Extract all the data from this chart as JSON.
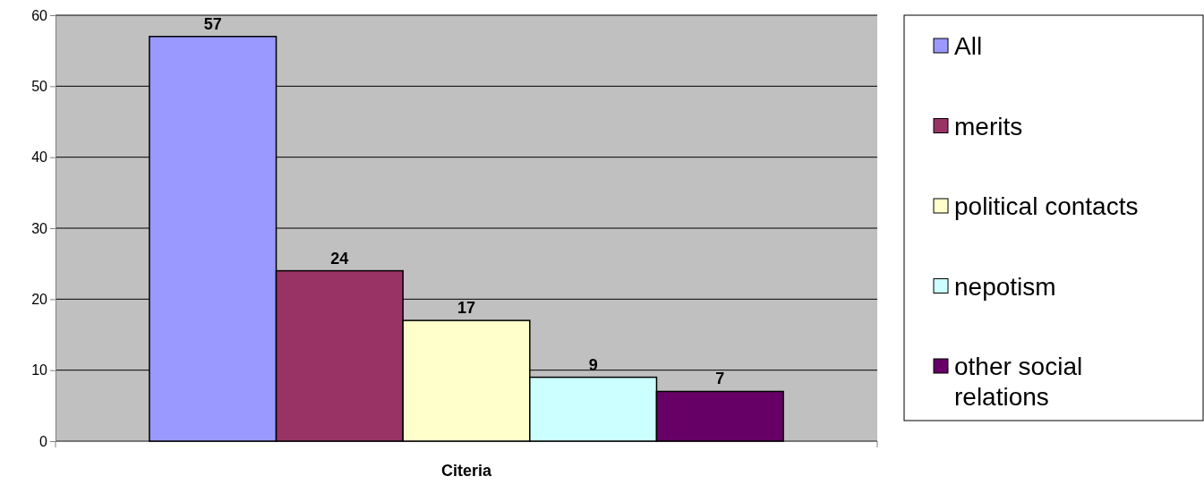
{
  "chart_data": {
    "type": "bar",
    "categories": [
      "Citeria"
    ],
    "series": [
      {
        "name": "All",
        "color": "#9999ff",
        "values": [
          57
        ]
      },
      {
        "name": "merits",
        "color": "#993366",
        "values": [
          24
        ]
      },
      {
        "name": "political contacts",
        "color": "#ffffcc",
        "values": [
          17
        ]
      },
      {
        "name": "nepotism",
        "color": "#ccffff",
        "values": [
          9
        ]
      },
      {
        "name": "other social relations",
        "color": "#660066",
        "values": [
          7
        ]
      }
    ],
    "ylim": [
      0,
      60
    ],
    "yticks": [
      0,
      10,
      20,
      30,
      40,
      50,
      60
    ],
    "grid": "y",
    "legend": "right",
    "data_labels": true
  }
}
